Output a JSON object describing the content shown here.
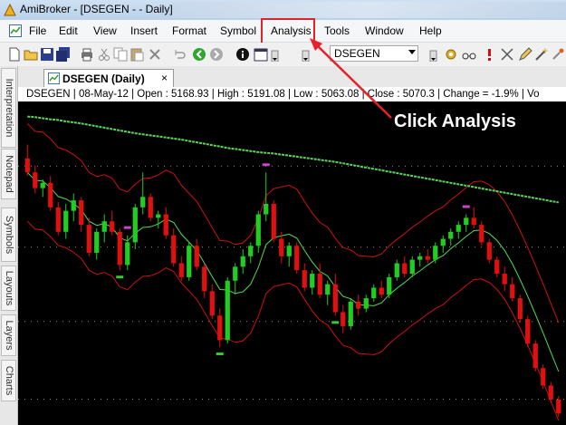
{
  "window": {
    "title": "AmiBroker - [DSEGEN -  - Daily]"
  },
  "menu": {
    "items": [
      "File",
      "Edit",
      "View",
      "Insert",
      "Format",
      "Symbol",
      "Analysis",
      "Tools",
      "Window",
      "Help"
    ],
    "highlighted": "Analysis"
  },
  "toolbar": {
    "symbol_value": "DSEGEN"
  },
  "side_tabs": [
    "Interpretation",
    "Notepad",
    "Symbols",
    "Layouts",
    "Layers",
    "Charts"
  ],
  "doc_tab": {
    "label": "DSEGEN (Daily)",
    "close": "×"
  },
  "infobar": {
    "text": "DSEGEN | 08-May-12 | Open : 5168.93 | High : 5191.08 | Low : 5063.08 | Close : 5070.3 | Change = -1.9% | Vo"
  },
  "annotation": {
    "text": "Click Analysis",
    "color": "#e8202a"
  },
  "chart_data": {
    "type": "candlestick",
    "colors": {
      "up": "#22cc22",
      "down": "#e01010",
      "ma_long": "#5cd65c",
      "ma_short": "#4fdc4f",
      "bands": "#d01010",
      "marker_high": "#cc44cc",
      "marker_low": "#33cc33"
    },
    "candles": [
      [
        5300,
        5340,
        5250,
        5260
      ],
      [
        5260,
        5280,
        5200,
        5215
      ],
      [
        5215,
        5240,
        5190,
        5230
      ],
      [
        5230,
        5250,
        5150,
        5160
      ],
      [
        5160,
        5175,
        5080,
        5090
      ],
      [
        5090,
        5170,
        5070,
        5150
      ],
      [
        5150,
        5200,
        5120,
        5180
      ],
      [
        5180,
        5190,
        5090,
        5110
      ],
      [
        5110,
        5130,
        5020,
        5030
      ],
      [
        5030,
        5100,
        5010,
        5090
      ],
      [
        5090,
        5140,
        5060,
        5120
      ],
      [
        5120,
        5150,
        5080,
        5090
      ],
      [
        5090,
        5100,
        4980,
        4995
      ],
      [
        4995,
        5080,
        4980,
        5060
      ],
      [
        5060,
        5170,
        5040,
        5160
      ],
      [
        5160,
        5260,
        5140,
        5190
      ],
      [
        5190,
        5200,
        5120,
        5130
      ],
      [
        5130,
        5150,
        5100,
        5140
      ],
      [
        5140,
        5160,
        5070,
        5080
      ],
      [
        5080,
        5100,
        4990,
        5000
      ],
      [
        5000,
        5020,
        4950,
        4960
      ],
      [
        4960,
        5060,
        4950,
        5050
      ],
      [
        5050,
        5070,
        4980,
        4990
      ],
      [
        4990,
        5000,
        4900,
        4920
      ],
      [
        4920,
        4940,
        4840,
        4850
      ],
      [
        4850,
        4870,
        4760,
        4780
      ],
      [
        4780,
        4960,
        4770,
        4950
      ],
      [
        4950,
        5000,
        4910,
        4990
      ],
      [
        4990,
        5040,
        4970,
        5020
      ],
      [
        5020,
        5060,
        5000,
        5050
      ],
      [
        5050,
        5150,
        5030,
        5140
      ],
      [
        5140,
        5260,
        5120,
        5170
      ],
      [
        5170,
        5180,
        5060,
        5070
      ],
      [
        5070,
        5090,
        5000,
        5020
      ],
      [
        5020,
        5060,
        4990,
        5050
      ],
      [
        5050,
        5060,
        4970,
        4980
      ],
      [
        4980,
        5000,
        4920,
        4930
      ],
      [
        4930,
        4980,
        4910,
        4970
      ],
      [
        4970,
        5000,
        4900,
        4910
      ],
      [
        4910,
        4950,
        4880,
        4940
      ],
      [
        4940,
        4970,
        4850,
        4860
      ],
      [
        4860,
        4880,
        4800,
        4820
      ],
      [
        4820,
        4900,
        4810,
        4890
      ],
      [
        4890,
        4910,
        4850,
        4870
      ],
      [
        4870,
        4910,
        4860,
        4900
      ],
      [
        4900,
        4940,
        4890,
        4930
      ],
      [
        4930,
        4950,
        4900,
        4910
      ],
      [
        4910,
        4970,
        4900,
        4960
      ],
      [
        4960,
        5010,
        4950,
        5000
      ],
      [
        5000,
        5020,
        4960,
        4970
      ],
      [
        4970,
        5020,
        4960,
        5010
      ],
      [
        5010,
        5030,
        4990,
        5020
      ],
      [
        5020,
        5040,
        5000,
        5010
      ],
      [
        5010,
        5060,
        5000,
        5050
      ],
      [
        5050,
        5080,
        5030,
        5070
      ],
      [
        5070,
        5100,
        5050,
        5090
      ],
      [
        5090,
        5120,
        5070,
        5110
      ],
      [
        5110,
        5140,
        5090,
        5130
      ],
      [
        5130,
        5160,
        5100,
        5110
      ],
      [
        5110,
        5120,
        5050,
        5060
      ],
      [
        5060,
        5070,
        5000,
        5010
      ],
      [
        5010,
        5020,
        4960,
        4970
      ],
      [
        4970,
        4990,
        4920,
        4940
      ],
      [
        4940,
        4960,
        4890,
        4900
      ],
      [
        4900,
        4910,
        4830,
        4840
      ],
      [
        4840,
        4850,
        4760,
        4770
      ],
      [
        4770,
        4780,
        4690,
        4700
      ],
      [
        4700,
        4710,
        4640,
        4650
      ],
      [
        4650,
        4660,
        4600,
        4610
      ],
      [
        4610,
        4620,
        4560,
        4570
      ]
    ],
    "ma_long": [
      5420,
      5418,
      5415,
      5412,
      5410,
      5406,
      5403,
      5400,
      5396,
      5392,
      5388,
      5384,
      5380,
      5376,
      5372,
      5369,
      5366,
      5363,
      5360,
      5357,
      5354,
      5350,
      5346,
      5342,
      5338,
      5334,
      5330,
      5327,
      5324,
      5321,
      5318,
      5316,
      5314,
      5311,
      5308,
      5305,
      5302,
      5299,
      5296,
      5293,
      5290,
      5286,
      5282,
      5278,
      5274,
      5270,
      5266,
      5262,
      5258,
      5254,
      5250,
      5246,
      5242,
      5238,
      5234,
      5230,
      5226,
      5222,
      5218,
      5214,
      5210,
      5206,
      5202,
      5198,
      5194,
      5190,
      5186,
      5182,
      5178,
      5174
    ],
    "price_range": [
      4550,
      5450
    ]
  }
}
